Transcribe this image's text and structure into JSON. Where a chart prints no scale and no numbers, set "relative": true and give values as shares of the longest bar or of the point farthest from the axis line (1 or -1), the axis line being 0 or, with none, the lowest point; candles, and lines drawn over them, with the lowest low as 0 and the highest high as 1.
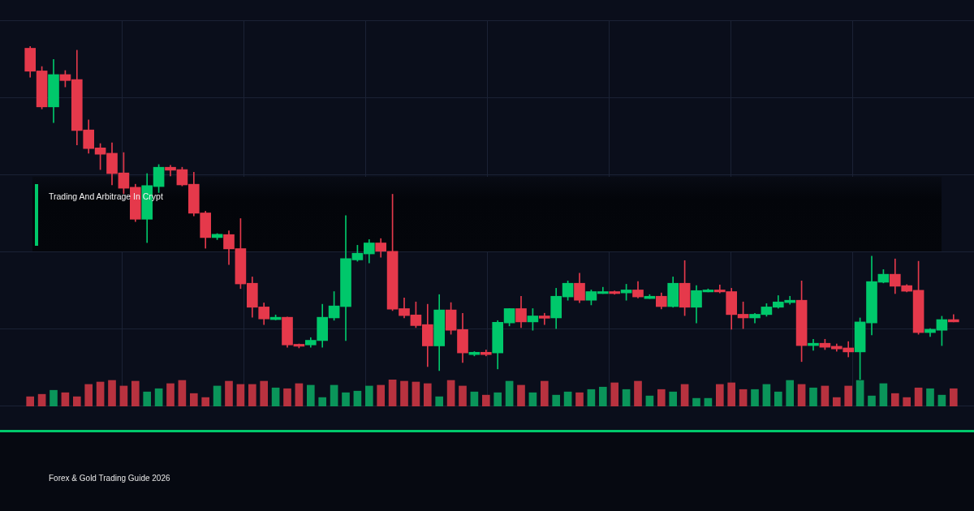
{
  "chart_data": [
    {
      "type": "candlestick",
      "title": "Trading And Arbitrage In Crypt",
      "relative": true,
      "grid": true,
      "tick_labels": false,
      "categories": [
        null,
        null,
        null,
        null,
        null,
        null,
        null,
        null,
        null,
        null,
        null,
        null,
        null,
        null,
        null,
        null,
        null,
        null,
        null,
        null,
        null,
        null,
        null,
        null,
        null,
        null,
        null,
        null,
        null,
        null,
        null,
        null,
        null,
        null,
        null,
        null,
        null,
        null,
        null,
        null,
        null,
        null,
        null,
        null,
        null,
        null,
        null,
        null,
        null,
        null,
        null,
        null,
        null,
        null,
        null,
        null,
        null,
        null,
        null,
        null,
        null,
        null,
        null,
        null,
        null,
        null,
        null,
        null,
        null,
        null,
        null,
        null,
        null,
        null,
        null,
        null,
        null,
        null,
        null,
        null
      ],
      "ohlc": [
        [
          0.994,
          1,
          0.907,
          0.925
        ],
        [
          0.926,
          0.939,
          0.812,
          0.818
        ],
        [
          0.818,
          0.96,
          0.771,
          0.915
        ],
        [
          0.915,
          0.927,
          0.878,
          0.897
        ],
        [
          0.9,
          0.988,
          0.704,
          0.747
        ],
        [
          0.749,
          0.779,
          0.679,
          0.693
        ],
        [
          0.695,
          0.708,
          0.63,
          0.676
        ],
        [
          0.679,
          0.71,
          0.584,
          0.618
        ],
        [
          0.62,
          0.681,
          0.558,
          0.574
        ],
        [
          0.577,
          0.586,
          0.474,
          0.481
        ],
        [
          0.481,
          0.618,
          0.411,
          0.582
        ],
        [
          0.579,
          0.645,
          0.561,
          0.637
        ],
        [
          0.637,
          0.643,
          0.611,
          0.628
        ],
        [
          0.63,
          0.637,
          0.581,
          0.584
        ],
        [
          0.586,
          0.622,
          0.491,
          0.499
        ],
        [
          0.5,
          0.505,
          0.394,
          0.426
        ],
        [
          0.426,
          0.438,
          0.42,
          0.436
        ],
        [
          0.435,
          0.446,
          0.345,
          0.392
        ],
        [
          0.393,
          0.483,
          0.273,
          0.287
        ],
        [
          0.289,
          0.308,
          0.187,
          0.217
        ],
        [
          0.218,
          0.23,
          0.165,
          0.182
        ],
        [
          0.18,
          0.194,
          0.179,
          0.187
        ],
        [
          0.187,
          0.188,
          0.097,
          0.104
        ],
        [
          0.106,
          0.107,
          0.095,
          0.1
        ],
        [
          0.104,
          0.126,
          0.097,
          0.118
        ],
        [
          0.117,
          0.226,
          0.097,
          0.187
        ],
        [
          0.185,
          0.264,
          0.178,
          0.221
        ],
        [
          0.219,
          0.492,
          0.117,
          0.363
        ],
        [
          0.359,
          0.403,
          0.355,
          0.379
        ],
        [
          0.377,
          0.42,
          0.35,
          0.41
        ],
        [
          0.41,
          0.423,
          0.367,
          0.385
        ],
        [
          0.385,
          0.556,
          0.207,
          0.211
        ],
        [
          0.213,
          0.245,
          0.185,
          0.192
        ],
        [
          0.194,
          0.233,
          0.156,
          0.162
        ],
        [
          0.165,
          0.226,
          0.039,
          0.101
        ],
        [
          0.101,
          0.255,
          0.027,
          0.209
        ],
        [
          0.209,
          0.231,
          0.136,
          0.148
        ],
        [
          0.15,
          0.199,
          0.051,
          0.08
        ],
        [
          0.075,
          0.084,
          0.071,
          0.082
        ],
        [
          0.082,
          0.089,
          0.071,
          0.075
        ],
        [
          0.08,
          0.177,
          0.032,
          0.172
        ],
        [
          0.17,
          0.213,
          0.161,
          0.213
        ],
        [
          0.213,
          0.25,
          0.156,
          0.173
        ],
        [
          0.173,
          0.213,
          0.148,
          0.191
        ],
        [
          0.191,
          0.199,
          0.165,
          0.184
        ],
        [
          0.185,
          0.274,
          0.153,
          0.25
        ],
        [
          0.248,
          0.296,
          0.238,
          0.289
        ],
        [
          0.289,
          0.319,
          0.231,
          0.238
        ],
        [
          0.238,
          0.269,
          0.224,
          0.264
        ],
        [
          0.258,
          0.277,
          0.258,
          0.264
        ],
        [
          0.264,
          0.266,
          0.256,
          0.258
        ],
        [
          0.26,
          0.286,
          0.238,
          0.269
        ],
        [
          0.269,
          0.294,
          0.245,
          0.248
        ],
        [
          0.243,
          0.255,
          0.243,
          0.25
        ],
        [
          0.25,
          0.26,
          0.212,
          0.219
        ],
        [
          0.219,
          0.308,
          0.217,
          0.289
        ],
        [
          0.289,
          0.357,
          0.192,
          0.217
        ],
        [
          0.217,
          0.282,
          0.17,
          0.267
        ],
        [
          0.263,
          0.272,
          0.263,
          0.269
        ],
        [
          0.269,
          0.284,
          0.26,
          0.263
        ],
        [
          0.264,
          0.274,
          0.151,
          0.195
        ],
        [
          0.196,
          0.233,
          0.153,
          0.185
        ],
        [
          0.185,
          0.199,
          0.17,
          0.196
        ],
        [
          0.195,
          0.228,
          0.19,
          0.218
        ],
        [
          0.217,
          0.252,
          0.214,
          0.233
        ],
        [
          0.231,
          0.25,
          0.226,
          0.238
        ],
        [
          0.238,
          0.296,
          0.054,
          0.102
        ],
        [
          0.102,
          0.121,
          0.088,
          0.109
        ],
        [
          0.109,
          0.121,
          0.09,
          0.097
        ],
        [
          0.1,
          0.107,
          0.085,
          0.092
        ],
        [
          0.095,
          0.114,
          0.068,
          0.083
        ],
        [
          0.083,
          0.185,
          0,
          0.173
        ],
        [
          0.17,
          0.37,
          0.134,
          0.294
        ],
        [
          0.292,
          0.33,
          0.29,
          0.316
        ],
        [
          0.316,
          0.362,
          0.258,
          0.28
        ],
        [
          0.282,
          0.285,
          0.263,
          0.265
        ],
        [
          0.268,
          0.355,
          0.136,
          0.141
        ],
        [
          0.141,
          0.153,
          0.129,
          0.151
        ],
        [
          0.148,
          0.19,
          0.102,
          0.18
        ],
        [
          0.18,
          0.195,
          0.173,
          0.173
        ]
      ],
      "colors": [
        "#e5394b",
        "#e5394b",
        "#00c86b",
        "#e5394b",
        "#e5394b",
        "#e5394b",
        "#e5394b",
        "#e5394b",
        "#e5394b",
        "#e5394b",
        "#00c86b",
        "#00c86b",
        "#e5394b",
        "#e5394b",
        "#e5394b",
        "#e5394b",
        "#00c86b",
        "#e5394b",
        "#e5394b",
        "#e5394b",
        "#e5394b",
        "#00c86b",
        "#e5394b",
        "#e5394b",
        "#00c86b",
        "#00c86b",
        "#00c86b",
        "#00c86b",
        "#00c86b",
        "#00c86b",
        "#e5394b",
        "#e5394b",
        "#e5394b",
        "#e5394b",
        "#e5394b",
        "#00c86b",
        "#e5394b",
        "#e5394b",
        "#00c86b",
        "#e5394b",
        "#00c86b",
        "#00c86b",
        "#e5394b",
        "#00c86b",
        "#e5394b",
        "#00c86b",
        "#00c86b",
        "#e5394b",
        "#00c86b",
        "#00c86b",
        "#e5394b",
        "#00c86b",
        "#e5394b",
        "#00c86b",
        "#e5394b",
        "#00c86b",
        "#e5394b",
        "#00c86b",
        "#00c86b",
        "#e5394b",
        "#e5394b",
        "#e5394b",
        "#00c86b",
        "#00c86b",
        "#00c86b",
        "#00c86b",
        "#e5394b",
        "#00c86b",
        "#e5394b",
        "#e5394b",
        "#e5394b",
        "#00c86b",
        "#00c86b",
        "#00c86b",
        "#e5394b",
        "#e5394b",
        "#e5394b",
        "#00c86b",
        "#00c86b",
        "#e5394b"
      ]
    },
    {
      "type": "bar",
      "relative": true,
      "grid": true,
      "tick_labels": false,
      "annotations": [
        "Forex & Gold Trading Guide 2026"
      ],
      "categories": [
        null,
        null,
        null,
        null,
        null,
        null,
        null,
        null,
        null,
        null,
        null,
        null,
        null,
        null,
        null,
        null,
        null,
        null,
        null,
        null,
        null,
        null,
        null,
        null,
        null,
        null,
        null,
        null,
        null,
        null,
        null,
        null,
        null,
        null,
        null,
        null,
        null,
        null,
        null,
        null,
        null,
        null,
        null,
        null,
        null,
        null,
        null,
        null,
        null,
        null,
        null,
        null,
        null,
        null,
        null,
        null,
        null,
        null,
        null,
        null,
        null,
        null,
        null,
        null,
        null,
        null,
        null,
        null,
        null,
        null,
        null,
        null,
        null,
        null,
        null,
        null,
        null,
        null,
        null,
        null
      ],
      "values": [
        0.36,
        0.45,
        0.6,
        0.51,
        0.36,
        0.82,
        0.91,
        0.97,
        0.76,
        0.94,
        0.54,
        0.66,
        0.85,
        0.97,
        0.48,
        0.33,
        0.76,
        0.94,
        0.82,
        0.82,
        0.94,
        0.69,
        0.66,
        0.85,
        0.79,
        0.33,
        0.79,
        0.51,
        0.57,
        0.76,
        0.79,
        1,
        0.94,
        0.91,
        0.85,
        0.36,
        0.97,
        0.76,
        0.54,
        0.42,
        0.51,
        0.94,
        0.79,
        0.51,
        0.94,
        0.42,
        0.54,
        0.51,
        0.63,
        0.72,
        0.88,
        0.63,
        0.94,
        0.39,
        0.63,
        0.54,
        0.82,
        0.3,
        0.3,
        0.82,
        0.88,
        0.63,
        0.63,
        0.82,
        0.54,
        0.97,
        0.82,
        0.69,
        0.76,
        0.33,
        0.76,
        0.97,
        0.39,
        0.85,
        0.48,
        0.33,
        0.69,
        0.66,
        0.42,
        0.66
      ],
      "colors": [
        "#b8323f",
        "#b8323f",
        "#0a955a",
        "#b8323f",
        "#b8323f",
        "#b8323f",
        "#b8323f",
        "#b8323f",
        "#b8323f",
        "#b8323f",
        "#0a955a",
        "#0a955a",
        "#b8323f",
        "#b8323f",
        "#b8323f",
        "#b8323f",
        "#0a955a",
        "#b8323f",
        "#b8323f",
        "#b8323f",
        "#b8323f",
        "#0a955a",
        "#b8323f",
        "#b8323f",
        "#0a955a",
        "#0a955a",
        "#0a955a",
        "#0a955a",
        "#0a955a",
        "#0a955a",
        "#b8323f",
        "#b8323f",
        "#b8323f",
        "#b8323f",
        "#b8323f",
        "#0a955a",
        "#b8323f",
        "#b8323f",
        "#0a955a",
        "#b8323f",
        "#0a955a",
        "#0a955a",
        "#b8323f",
        "#0a955a",
        "#b8323f",
        "#0a955a",
        "#0a955a",
        "#b8323f",
        "#0a955a",
        "#0a955a",
        "#b8323f",
        "#0a955a",
        "#b8323f",
        "#0a955a",
        "#b8323f",
        "#0a955a",
        "#b8323f",
        "#0a955a",
        "#0a955a",
        "#b8323f",
        "#b8323f",
        "#b8323f",
        "#0a955a",
        "#0a955a",
        "#0a955a",
        "#0a955a",
        "#b8323f",
        "#0a955a",
        "#b8323f",
        "#b8323f",
        "#b8323f",
        "#0a955a",
        "#0a955a",
        "#0a955a",
        "#b8323f",
        "#b8323f",
        "#b8323f",
        "#0a955a",
        "#0a955a",
        "#b8323f"
      ]
    }
  ]
}
